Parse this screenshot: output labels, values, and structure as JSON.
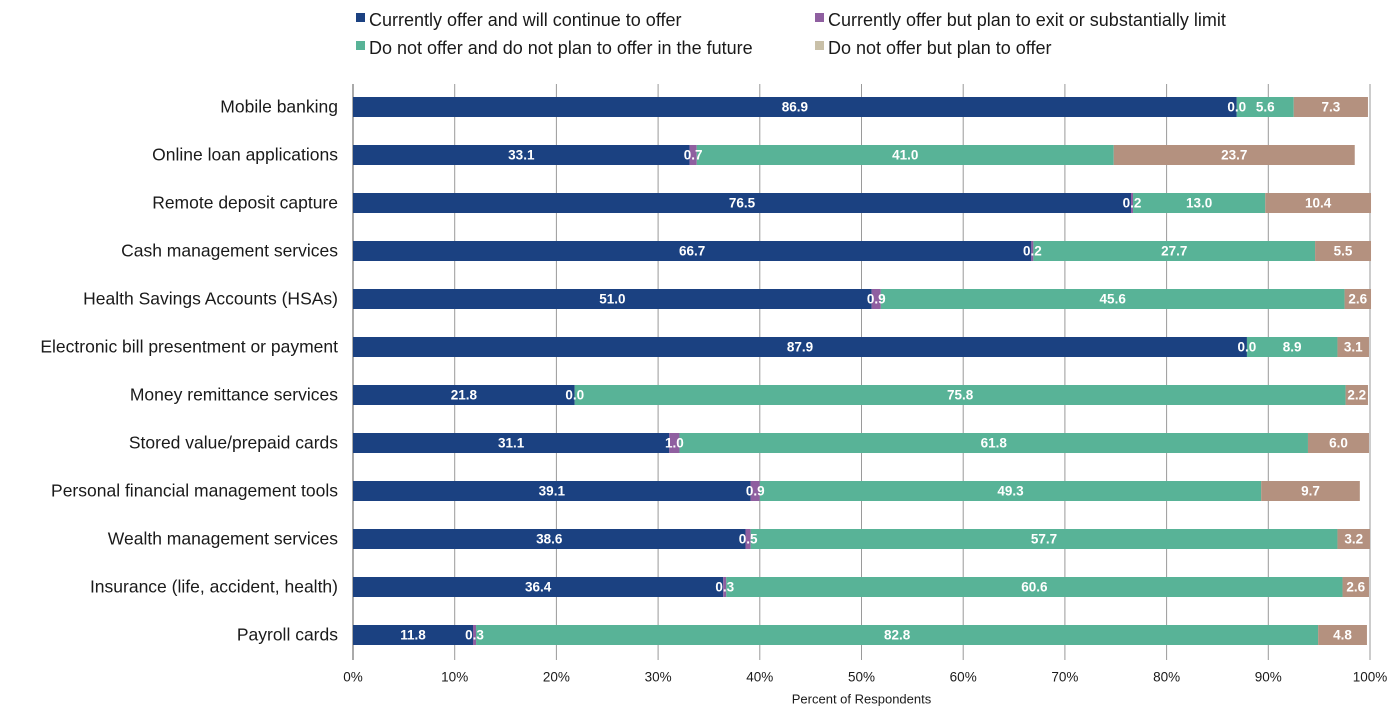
{
  "chart_data": {
    "type": "bar",
    "orientation": "horizontal",
    "stacked": true,
    "legend_placement": "top",
    "grid": true,
    "xlabel": "Percent of Respondents",
    "xlim": [
      0,
      100
    ],
    "ticks": [
      "0%",
      "10%",
      "20%",
      "30%",
      "40%",
      "50%",
      "60%",
      "70%",
      "80%",
      "90%",
      "100%"
    ],
    "categories": [
      "Mobile banking",
      "Online loan applications",
      "Remote deposit capture",
      "Cash management services",
      "Health Savings Accounts (HSAs)",
      "Electronic bill presentment or payment",
      "Money remittance services",
      "Stored value/prepaid cards",
      "Personal financial management tools",
      "Wealth management services",
      "Insurance (life, accident, health)",
      "Payroll cards"
    ],
    "series": [
      {
        "name": "Currently offer and will continue to offer",
        "color": "#1b4181",
        "values": [
          86.9,
          33.1,
          76.5,
          66.7,
          51.0,
          87.9,
          21.8,
          31.1,
          39.1,
          38.6,
          36.4,
          11.8
        ],
        "labels": [
          "86.9",
          "33.1",
          "76.5",
          "66.7",
          "51.0",
          "87.9",
          "21.8",
          "31.1",
          "39.1",
          "38.6",
          "36.4",
          "11.8"
        ]
      },
      {
        "name": "Currently offer but plan to exit or substantially limit",
        "color": "#8f5fa0",
        "values": [
          0.0,
          0.7,
          0.2,
          0.2,
          0.9,
          0.0,
          0.0,
          1.0,
          0.9,
          0.5,
          0.3,
          0.3
        ],
        "labels": [
          "0.0",
          "0.7",
          "0.2",
          "0.2",
          "0.9",
          "0.0",
          "0.0",
          "1.0",
          "0.9",
          "0.5",
          "0.3",
          "0.3"
        ]
      },
      {
        "name": "Do not offer and do not plan to offer in the future",
        "color": "#58b397",
        "values": [
          5.6,
          41.0,
          13.0,
          27.7,
          45.6,
          8.9,
          75.8,
          61.8,
          49.3,
          57.7,
          60.6,
          82.8
        ],
        "labels": [
          "5.6",
          "41.0",
          "13.0",
          "27.7",
          "45.6",
          "8.9",
          "75.8",
          "61.8",
          "49.3",
          "57.7",
          "60.6",
          "82.8"
        ]
      },
      {
        "name": "Do not offer but plan to offer",
        "color": "#b4917f",
        "legend_color": "#c9c0a8",
        "values": [
          7.3,
          23.7,
          10.4,
          5.5,
          2.6,
          3.1,
          2.2,
          6.0,
          9.7,
          3.2,
          2.6,
          4.8
        ],
        "labels": [
          "7.3",
          "23.7",
          "10.4",
          "5.5",
          "2.6",
          "3.1",
          "2.2",
          "6.0",
          "9.7",
          "3.2",
          "2.6",
          "4.8"
        ]
      }
    ]
  }
}
